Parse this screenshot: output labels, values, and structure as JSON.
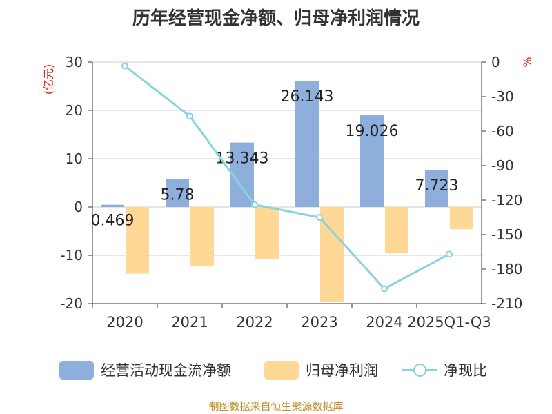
{
  "chart_data": {
    "type": "bar+line",
    "title": "历年经营现金净额、归母净利润情况",
    "categories": [
      "2020",
      "2021",
      "2022",
      "2023",
      "2024",
      "2025Q1-Q3"
    ],
    "series": [
      {
        "name": "经营活动现金流净额",
        "type": "bar",
        "axis": "left",
        "color": "#8eaedb",
        "values": [
          0.469,
          5.78,
          13.343,
          26.143,
          19.026,
          7.723
        ],
        "labels": [
          "0.469",
          "5.78",
          "13.343",
          "26.143",
          "19.026",
          "7.723"
        ]
      },
      {
        "name": "归母净利润",
        "type": "bar",
        "axis": "left",
        "color": "#ffd896",
        "values": [
          -13.8,
          -12.3,
          -10.8,
          -19.7,
          -9.6,
          -4.6
        ]
      },
      {
        "name": "净现比",
        "type": "line",
        "axis": "right",
        "color": "#8bd3da",
        "values": [
          -3.4,
          -47,
          -124,
          -135,
          -197,
          -167
        ]
      }
    ],
    "left_axis": {
      "label": "(亿元)",
      "min": -20,
      "max": 30,
      "ticks": [
        "30",
        "20",
        "10",
        "0",
        "-10",
        "-20"
      ]
    },
    "right_axis": {
      "label": "%",
      "min": -210,
      "max": 0,
      "ticks": [
        "0",
        "-30",
        "-60",
        "-90",
        "-120",
        "-150",
        "-180",
        "-210"
      ]
    },
    "legend_position": "bottom",
    "axis_label_color": "#e0201a",
    "source": "制图数据来自恒生聚源数据库",
    "source_color": "#c0902a"
  }
}
